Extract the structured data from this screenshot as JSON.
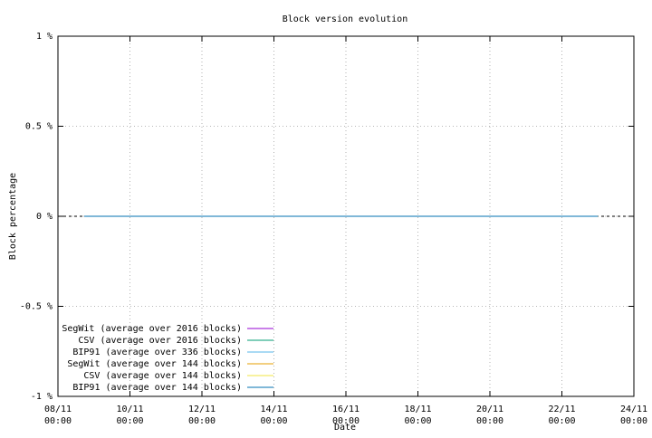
{
  "chart_data": {
    "type": "line",
    "title": "Block version evolution",
    "x_label": "Date",
    "y_label": "Block percentage",
    "x": [
      8.73,
      23.0
    ],
    "xlim": [
      8,
      24
    ],
    "xticks": [
      {
        "value": 8,
        "label": "08/11 00:00"
      },
      {
        "value": 10,
        "label": "10/11 00:00"
      },
      {
        "value": 12,
        "label": "12/11 00:00"
      },
      {
        "value": 14,
        "label": "14/11 00:00"
      },
      {
        "value": 16,
        "label": "16/11 00:00"
      },
      {
        "value": 18,
        "label": "18/11 00:00"
      },
      {
        "value": 20,
        "label": "20/11 00:00"
      },
      {
        "value": 22,
        "label": "22/11 00:00"
      },
      {
        "value": 24,
        "label": "24/11 00:00"
      }
    ],
    "ylim": [
      -1,
      1
    ],
    "yticks": [
      {
        "value": -1,
        "label": "-1 %"
      },
      {
        "value": -0.5,
        "label": "-0.5 %"
      },
      {
        "value": 0,
        "label": "0 %"
      },
      {
        "value": 0.5,
        "label": "0.5 %"
      },
      {
        "value": 1,
        "label": "1 %"
      }
    ],
    "grid": true,
    "legend_position": "lower left",
    "series": [
      {
        "name": "SegWit (average over 2016 blocks)",
        "color": "#9400d3",
        "values": [
          0,
          0
        ]
      },
      {
        "name": "CSV (average over 2016 blocks)",
        "color": "#009e73",
        "values": [
          0,
          0
        ]
      },
      {
        "name": "BIP91 (average over 336 blocks)",
        "color": "#56b4e9",
        "values": [
          0,
          0
        ]
      },
      {
        "name": "SegWit (average over 144 blocks)",
        "color": "#e69f00",
        "values": [
          0,
          0
        ]
      },
      {
        "name": "CSV (average over 144 blocks)",
        "color": "#f0e442",
        "values": [
          0,
          0
        ]
      },
      {
        "name": "BIP91 (average over 144 blocks)",
        "color": "#0072b2",
        "values": [
          0,
          0
        ]
      }
    ]
  }
}
